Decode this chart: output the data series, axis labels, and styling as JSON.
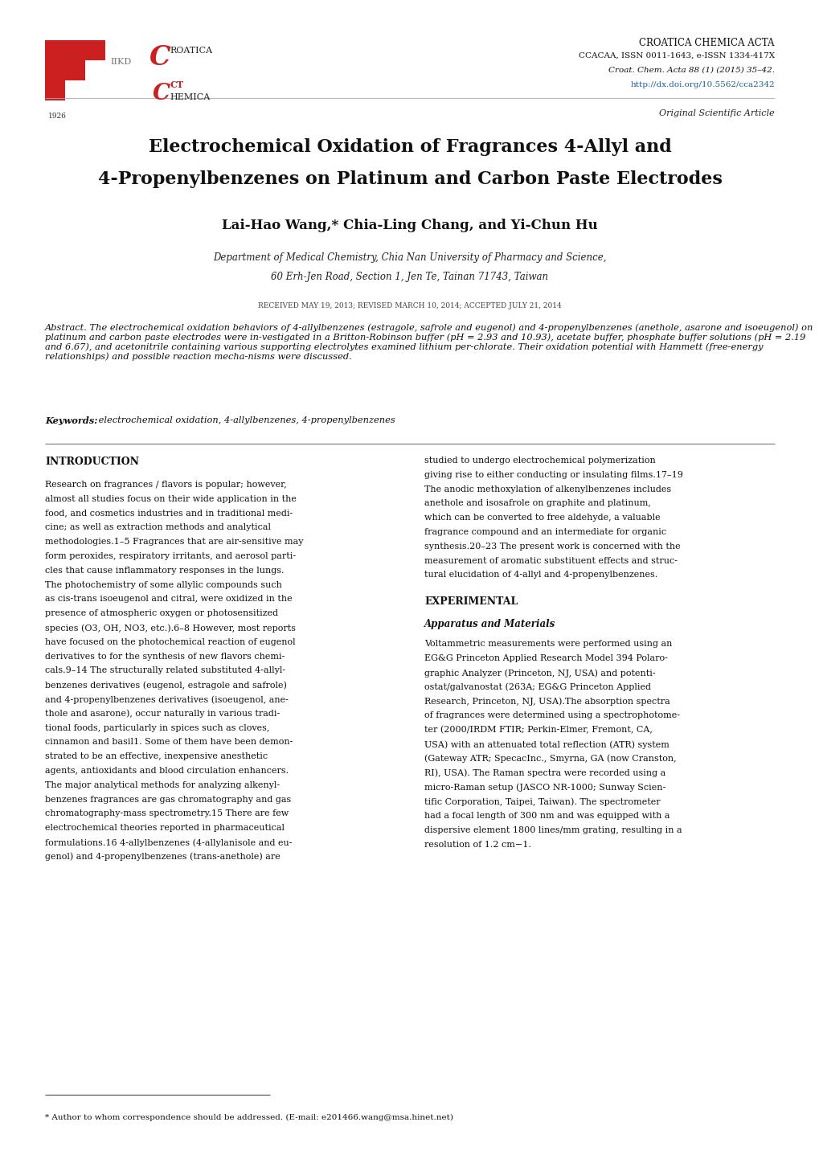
{
  "page_width": 10.2,
  "page_height": 14.42,
  "bg_color": "#ffffff",
  "journal_name": "CROATICA CHEMICA ACTA",
  "journal_issn": "CCACAA, ISSN 0011-1643, e-ISSN 1334-417X",
  "journal_cite_italic": "Croat. Chem. Acta ",
  "journal_cite_bold": "88",
  "journal_cite_rest": " (1) (2015) 35–42.",
  "journal_doi": "http://dx.doi.org/10.5562/cca2342",
  "article_type": "Original Scientific Article",
  "title_line1": "Electrochemical Oxidation of Fragrances 4-Allyl and",
  "title_line2": "4-Propenylbenzenes on Platinum and Carbon Paste Electrodes",
  "author_part1": "Lai-Hao Wang,",
  "author_star": "*",
  "author_part2": " Chia-Ling Chang, and Yi-Chun Hu",
  "affil1": "Department of Medical Chemistry, Chia Nan University of Pharmacy and Science,",
  "affil2": "60 Erh-Jen Road, Section 1, Jen Te, Tainan 71743, Taiwan",
  "received": "RECEIVED MAY 19, 2013; REVISED MARCH 10, 2014; ACCEPTED JULY 21, 2014",
  "abstract_label": "Abstract.",
  "abstract_body": " The electrochemical oxidation behaviors of 4-allylbenzenes (estragole, safrole and eugenol) and 4-propenylbenzenes (anethole, asarone and isoeugenol) on platinum and carbon paste electrodes were in-vestigated in a Britton-Robinson buffer (pH = 2.93 and 10.93), acetate buffer, phosphate buffer solutions (pH = 2.19 and 6.67), and acetonitrile containing various supporting electrolytes examined lithium per-chlorate. Their oxidation potential with Hammett (free-energy relationships) and possible reaction mecha-nisms were discussed.",
  "kw_label": "Keywords:",
  "kw_body": " electrochemical oxidation, 4-allylbenzenes, 4-propenylbenzenes",
  "intro_heading": "INTRODUCTION",
  "intro_col1_lines": [
    "Research on fragrances / flavors is popular; however,",
    "almost all studies focus on their wide application in the",
    "food, and cosmetics industries and in traditional medi-",
    "cine; as well as extraction methods and analytical",
    "methodologies.1–5 Fragrances that are air-sensitive may",
    "form peroxides, respiratory irritants, and aerosol parti-",
    "cles that cause inflammatory responses in the lungs.",
    "The photochemistry of some allylic compounds such",
    "as cis-trans isoeugenol and citral, were oxidized in the",
    "presence of atmospheric oxygen or photosensitized",
    "species (O3, OH, NO3, etc.).6–8 However, most reports",
    "have focused on the photochemical reaction of eugenol",
    "derivatives to for the synthesis of new flavors chemi-",
    "cals.9–14 The structurally related substituted 4-allyl-",
    "benzenes derivatives (eugenol, estragole and safrole)",
    "and 4-propenylbenzenes derivatives (isoeugenol, ane-",
    "thole and asarone), occur naturally in various tradi-",
    "tional foods, particularly in spices such as cloves,",
    "cinnamon and basil1. Some of them have been demon-",
    "strated to be an effective, inexpensive anesthetic",
    "agents, antioxidants and blood circulation enhancers.",
    "The major analytical methods for analyzing alkenyl-",
    "benzenes fragrances are gas chromatography and gas",
    "chromatography-mass spectrometry.15 There are few",
    "electrochemical theories reported in pharmaceutical",
    "formulations.16 4-allylbenzenes (4-allylanisole and eu-",
    "genol) and 4-propenylbenzenes (trans-anethole) are"
  ],
  "intro_col2_lines": [
    "studied to undergo electrochemical polymerization",
    "giving rise to either conducting or insulating films.17–19",
    "The anodic methoxylation of alkenylbenzenes includes",
    "anethole and isosafrole on graphite and platinum,",
    "which can be converted to free aldehyde, a valuable",
    "fragrance compound and an intermediate for organic",
    "synthesis.20–23 The present work is concerned with the",
    "measurement of aromatic substituent effects and struc-",
    "tural elucidation of 4-allyl and 4-propenylbenzenes."
  ],
  "exp_heading": "EXPERIMENTAL",
  "exp_sub": "Apparatus and Materials",
  "exp_col2_lines": [
    "Voltammetric measurements were performed using an",
    "EG&G Princeton Applied Research Model 394 Polaro-",
    "graphic Analyzer (Princeton, NJ, USA) and potenti-",
    "ostat/galvanostat (263A; EG&G Princeton Applied",
    "Research, Princeton, NJ, USA).The absorption spectra",
    "of fragrances were determined using a spectrophotome-",
    "ter (2000/IRDM FTIR; Perkin-Elmer, Fremont, CA,",
    "USA) with an attenuated total reflection (ATR) system",
    "(Gateway ATR; SpecacInc., Smyrna, GA (now Cranston,",
    "RI), USA). The Raman spectra were recorded using a",
    "micro-Raman setup (JASCO NR-1000; Sunway Scien-",
    "tific Corporation, Taipei, Taiwan). The spectrometer",
    "had a focal length of 300 nm and was equipped with a",
    "dispersive element 1800 lines/mm grating, resulting in a",
    "resolution of 1.2 cm−1."
  ],
  "footnote": "* Author to whom correspondence should be addressed. (E-mail: e201466.wang@msa.hinet.net)",
  "red_color": "#CC1F1F",
  "blue_color": "#1a5fa3",
  "gray_color": "#777777",
  "dark_color": "#111111",
  "mid_color": "#444444"
}
